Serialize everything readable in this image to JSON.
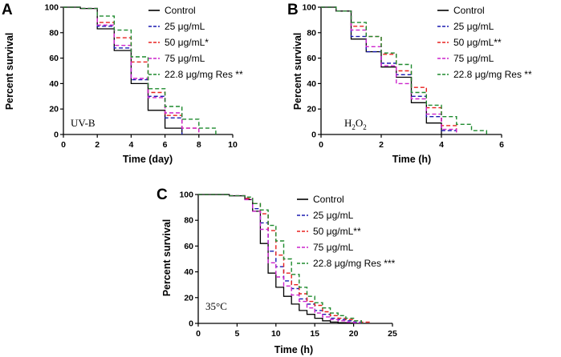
{
  "colors": {
    "Control": "#000000",
    "25": "#1a1ab0",
    "50": "#e8201e",
    "75": "#cc22cc",
    "Res": "#1d8a2d"
  },
  "chart_data": [
    {
      "panel": "A",
      "type": "line",
      "step": true,
      "condition": "UV-B",
      "xlabel": "Time (day)",
      "ylabel": "Percent survival",
      "xlim": [
        0,
        10
      ],
      "ylim": [
        0,
        100
      ],
      "xticks": [
        0,
        2,
        4,
        6,
        8,
        10
      ],
      "yticks": [
        0,
        20,
        40,
        60,
        80,
        100
      ],
      "legend": [
        "Control",
        "25 μg/mL",
        "50 μg/mL*",
        "75 μg/mL",
        "22.8 μg/mg Res **"
      ],
      "series": [
        {
          "name": "Control",
          "color_key": "Control",
          "x": [
            0,
            1,
            2,
            3,
            4,
            5,
            6,
            7
          ],
          "y": [
            100,
            99,
            83,
            66,
            40,
            19,
            5,
            0
          ]
        },
        {
          "name": "25 μg/mL",
          "color_key": "25",
          "x": [
            0,
            1,
            2,
            3,
            4,
            5,
            6,
            7
          ],
          "y": [
            100,
            99,
            85,
            68,
            43,
            30,
            13,
            0
          ]
        },
        {
          "name": "50 μg/mL*",
          "color_key": "50",
          "x": [
            0,
            1,
            2,
            3,
            4,
            5,
            6,
            7,
            8
          ],
          "y": [
            100,
            99,
            88,
            76,
            57,
            33,
            15,
            5,
            0
          ]
        },
        {
          "name": "75 μg/mL",
          "color_key": "75",
          "x": [
            0,
            1,
            2,
            3,
            4,
            5,
            6,
            7,
            8
          ],
          "y": [
            100,
            99,
            86,
            70,
            44,
            29,
            17,
            5,
            0
          ]
        },
        {
          "name": "22.8 μg/mg Res **",
          "color_key": "Res",
          "x": [
            0,
            1,
            2,
            3,
            4,
            5,
            6,
            7,
            8,
            9
          ],
          "y": [
            100,
            99,
            93,
            82,
            61,
            36,
            22,
            12,
            5,
            0
          ]
        }
      ]
    },
    {
      "panel": "B",
      "type": "line",
      "step": true,
      "condition": "H2O2",
      "condition_base": "H",
      "condition_sub1": "2",
      "condition_mid": "O",
      "condition_sub2": "2",
      "xlabel": "Time (h)",
      "ylabel": "Percent survival",
      "xlim": [
        0,
        6
      ],
      "ylim": [
        0,
        100
      ],
      "xticks": [
        0,
        2,
        4,
        6
      ],
      "yticks": [
        0,
        20,
        40,
        60,
        80,
        100
      ],
      "legend": [
        "Control",
        "25 μg/mL",
        "50 μg/mL**",
        "75 μg/mL",
        "22.8 μg/mg Res **"
      ],
      "series": [
        {
          "name": "Control",
          "color_key": "Control",
          "x": [
            0,
            0.5,
            1,
            1.5,
            2,
            2.5,
            3,
            3.5,
            4
          ],
          "y": [
            100,
            97,
            75,
            65,
            53,
            45,
            25,
            9,
            0
          ]
        },
        {
          "name": "25 μg/mL",
          "color_key": "25",
          "x": [
            0,
            0.5,
            1,
            1.5,
            2,
            2.5,
            3,
            3.5,
            4,
            4.5
          ],
          "y": [
            100,
            97,
            77,
            65,
            56,
            47,
            30,
            14,
            3,
            0
          ]
        },
        {
          "name": "50 μg/mL**",
          "color_key": "50",
          "x": [
            0,
            0.5,
            1,
            1.5,
            2,
            2.5,
            3,
            3.5,
            4,
            4.5
          ],
          "y": [
            100,
            97,
            85,
            77,
            63,
            50,
            37,
            21,
            7,
            0
          ]
        },
        {
          "name": "75 μg/mL",
          "color_key": "75",
          "x": [
            0,
            0.5,
            1,
            1.5,
            2,
            2.5,
            3,
            3.5,
            4,
            4.5
          ],
          "y": [
            100,
            97,
            82,
            69,
            54,
            40,
            28,
            16,
            4,
            0
          ]
        },
        {
          "name": "22.8 μg/mg Res **",
          "color_key": "Res",
          "x": [
            0,
            0.5,
            1,
            1.5,
            2,
            2.5,
            3,
            3.5,
            4,
            4.5,
            5,
            5.5
          ],
          "y": [
            100,
            97,
            88,
            77,
            64,
            55,
            33,
            23,
            14,
            8,
            3,
            0
          ]
        }
      ]
    },
    {
      "panel": "C",
      "type": "line",
      "step": true,
      "condition": "35°C",
      "xlabel": "Time (h)",
      "ylabel": "Percent survival",
      "xlim": [
        0,
        25
      ],
      "ylim": [
        0,
        100
      ],
      "xticks": [
        0,
        5,
        10,
        15,
        20,
        25
      ],
      "yticks": [
        0,
        20,
        40,
        60,
        80,
        100
      ],
      "legend": [
        "Control",
        "25 μg/mL",
        "50 μg/mL**",
        "75 μg/mL",
        "22.8 μg/mg Res ***"
      ],
      "series": [
        {
          "name": "Control",
          "color_key": "Control",
          "x": [
            0,
            4,
            6,
            7,
            8,
            9,
            10,
            11,
            12,
            13,
            14,
            15,
            16,
            17,
            18,
            19,
            20
          ],
          "y": [
            100,
            99,
            96,
            87,
            62,
            39,
            28,
            21,
            15,
            10,
            7,
            4,
            2,
            1,
            0.5,
            0.3,
            0
          ]
        },
        {
          "name": "25 μg/mL",
          "color_key": "25",
          "x": [
            0,
            4,
            6,
            7,
            8,
            9,
            10,
            11,
            12,
            13,
            14,
            15,
            16,
            17,
            18,
            19,
            20,
            21
          ],
          "y": [
            100,
            99,
            97,
            89,
            78,
            56,
            44,
            33,
            27,
            19,
            15,
            10,
            7,
            4,
            3,
            2,
            1,
            0
          ]
        },
        {
          "name": "50 μg/mL**",
          "color_key": "50",
          "x": [
            0,
            4,
            6,
            7,
            8,
            9,
            10,
            11,
            12,
            13,
            14,
            15,
            16,
            17,
            18,
            19,
            20,
            21,
            22
          ],
          "y": [
            100,
            99,
            97,
            93,
            85,
            72,
            53,
            39,
            30,
            23,
            17,
            14,
            9,
            6,
            4,
            3,
            2,
            1,
            0
          ]
        },
        {
          "name": "75 μg/mL",
          "color_key": "75",
          "x": [
            0,
            4,
            6,
            7,
            8,
            9,
            10,
            11,
            12,
            13,
            14,
            15,
            16,
            17,
            18,
            19,
            20,
            21
          ],
          "y": [
            100,
            99,
            96,
            87,
            73,
            47,
            36,
            29,
            22,
            17,
            12,
            8,
            5,
            3,
            2,
            1,
            0.5,
            0
          ]
        },
        {
          "name": "22.8 μg/mg Res ***",
          "color_key": "Res",
          "x": [
            0,
            4,
            6,
            7,
            8,
            9,
            10,
            11,
            12,
            13,
            14,
            15,
            16,
            17,
            18,
            19,
            20,
            21
          ],
          "y": [
            100,
            99,
            98,
            93,
            88,
            76,
            64,
            50,
            38,
            28,
            21,
            16,
            12,
            8,
            6,
            4,
            2,
            0
          ]
        }
      ]
    }
  ]
}
